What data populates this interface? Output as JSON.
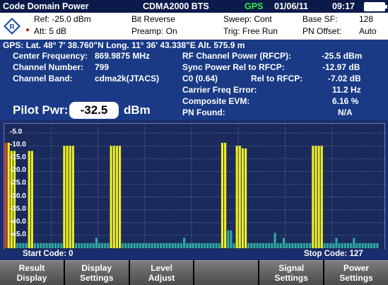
{
  "titlebar": {
    "app": "Code Domain Power",
    "standard": "CDMA2000 BTS",
    "gps": "GPS",
    "date": "01/06/11",
    "time": "09:17"
  },
  "settings": {
    "ref": "Ref: -25.0 dBm",
    "att": "Att: 5 dB",
    "bit_reverse": "Bit Reverse",
    "preamp": "Preamp:  On",
    "sweep": "Sweep: Cont",
    "trig": "Trig:  Free Run",
    "base_sf_label": "Base SF:",
    "base_sf_value": "128",
    "pn_offset_label": "PN Offset:",
    "pn_offset_value": "Auto"
  },
  "info": {
    "gps_line": "GPS: Lat.  48°  7' 38.760\"N  Long.   11° 36' 43.338\"E  Alt. 575.9 m",
    "center_freq_label": "Center Frequency:",
    "center_freq_value": "869.9875 MHz",
    "channel_number_label": "Channel Number:",
    "channel_number_value": "799",
    "channel_band_label": "Channel Band:",
    "channel_band_value": "cdma2k(JTACS)",
    "rfcp_label": "RF Channel Power (RFCP):",
    "rfcp_value": "-25.5 dBm",
    "sync_label": "Sync Power Rel to RFCP:",
    "sync_value": "-12.97 dB",
    "c0_label": "C0    (0.64)",
    "c0_rel_label": "Rel to RFCP:",
    "c0_rel_value": "-7.02 dB",
    "carrier_label": "Carrier Freq Error:",
    "carrier_value": "11.2 Hz",
    "evm_label": "Composite EVM:",
    "evm_value": "6.16 %",
    "pn_found_label": "PN Found:",
    "pn_found_value": "N/A",
    "pilot_label": "Pilot Pwr:",
    "pilot_value": "-32.5",
    "pilot_unit": "dBm"
  },
  "plot": {
    "y_ticks": [
      "-5.0",
      "-10.0",
      "-15.0",
      "-20.0",
      "-25.0",
      "-30.0",
      "-35.0",
      "-40.0",
      "-45.0"
    ],
    "start_code": "Start Code: 0",
    "stop_code": "Stop Code:  127"
  },
  "colors": {
    "active_bar": "#f0f020",
    "inactive_bar": "#2fa8a0",
    "pilot_bar": "#e04020",
    "panel": "#1a3a86"
  },
  "softkeys": [
    [
      "Result",
      "Display"
    ],
    [
      "Display",
      "Settings"
    ],
    [
      "Level",
      "Adjust"
    ],
    [
      "",
      ""
    ],
    [
      "Signal",
      "Settings"
    ],
    [
      "Power",
      "Settings"
    ]
  ],
  "chart_data": {
    "type": "bar",
    "x_range": [
      0,
      127
    ],
    "ylim": [
      -50,
      -2.5
    ],
    "y_unit": "dB",
    "active_codes": [
      {
        "code": 0,
        "value": -8.8,
        "kind": "pilot"
      },
      {
        "code": 1,
        "value": -8.8,
        "kind": "sync"
      },
      {
        "code": 2,
        "value": -12.0,
        "kind": "traffic"
      },
      {
        "code": 3,
        "value": -12.0,
        "kind": "traffic"
      },
      {
        "code": 8,
        "value": -12.0,
        "kind": "traffic"
      },
      {
        "code": 9,
        "value": -12.0,
        "kind": "traffic"
      },
      {
        "code": 20,
        "value": -10.0,
        "kind": "traffic"
      },
      {
        "code": 21,
        "value": -10.0,
        "kind": "traffic"
      },
      {
        "code": 22,
        "value": -10.0,
        "kind": "traffic"
      },
      {
        "code": 23,
        "value": -10.0,
        "kind": "traffic"
      },
      {
        "code": 36,
        "value": -10.0,
        "kind": "traffic"
      },
      {
        "code": 37,
        "value": -10.0,
        "kind": "traffic"
      },
      {
        "code": 38,
        "value": -10.0,
        "kind": "traffic"
      },
      {
        "code": 39,
        "value": -10.0,
        "kind": "traffic"
      },
      {
        "code": 74,
        "value": -8.8,
        "kind": "traffic"
      },
      {
        "code": 75,
        "value": -8.8,
        "kind": "traffic"
      },
      {
        "code": 79,
        "value": -10.0,
        "kind": "traffic"
      },
      {
        "code": 80,
        "value": -10.0,
        "kind": "traffic"
      },
      {
        "code": 81,
        "value": -11.0,
        "kind": "traffic"
      },
      {
        "code": 82,
        "value": -11.0,
        "kind": "traffic"
      },
      {
        "code": 105,
        "value": -10.0,
        "kind": "traffic"
      },
      {
        "code": 106,
        "value": -10.0,
        "kind": "traffic"
      },
      {
        "code": 107,
        "value": -10.0,
        "kind": "traffic"
      },
      {
        "code": 108,
        "value": -10.0,
        "kind": "traffic"
      }
    ],
    "inactive_codes": [
      {
        "code": 31,
        "value": -46.0
      },
      {
        "code": 61,
        "value": -46.0
      },
      {
        "code": 76,
        "value": -43.0
      },
      {
        "code": 77,
        "value": -43.0
      },
      {
        "code": 92,
        "value": -44.0
      },
      {
        "code": 95,
        "value": -46.0
      },
      {
        "code": 113,
        "value": -46.0
      },
      {
        "code": 119,
        "value": -46.0
      }
    ],
    "noise_floor": -48.0
  }
}
